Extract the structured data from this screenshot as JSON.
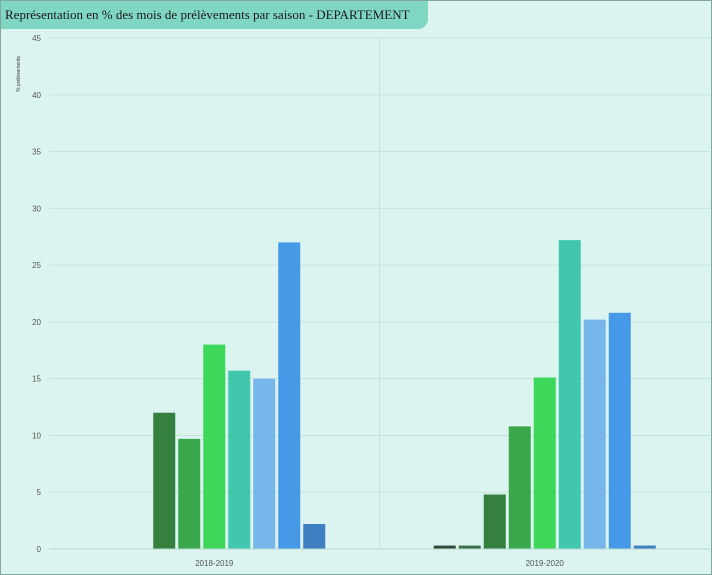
{
  "title": "Représentation en % des mois de prélèvements par saison - DEPARTEMENT",
  "chart_data": {
    "type": "bar",
    "ylabel": "% prélèvements",
    "xlabel": "",
    "ylim": [
      0,
      45
    ],
    "yticks": [
      0,
      5,
      10,
      15,
      20,
      25,
      30,
      35,
      40,
      45
    ],
    "grid": true,
    "categories": [
      "2018-2019",
      "2019-2020"
    ],
    "series": [
      {
        "color": "#2e4a36",
        "values": [
          0,
          0.3
        ]
      },
      {
        "color": "#3c6e48",
        "values": [
          0,
          0.3
        ]
      },
      {
        "color": "#357f3f",
        "values": [
          12.0,
          4.8
        ]
      },
      {
        "color": "#3aa84a",
        "values": [
          9.7,
          10.8
        ]
      },
      {
        "color": "#3dd85a",
        "values": [
          18.0,
          15.1
        ]
      },
      {
        "color": "#40c7ad",
        "values": [
          15.7,
          27.2
        ]
      },
      {
        "color": "#76b6ea",
        "values": [
          15.0,
          20.2
        ]
      },
      {
        "color": "#4599e6",
        "values": [
          27.0,
          20.8
        ]
      },
      {
        "color": "#3d7fc1",
        "values": [
          2.2,
          0.3
        ]
      }
    ]
  }
}
